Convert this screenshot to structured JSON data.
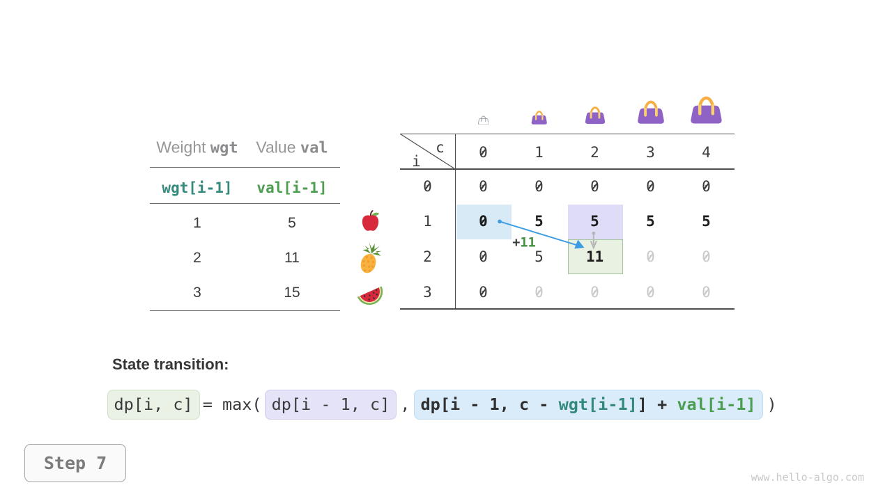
{
  "items_table": {
    "header": {
      "col1_prefix": "Weight",
      "col1_code": "wgt",
      "col2_prefix": "Value",
      "col2_code": "val"
    },
    "index_row": {
      "wgt": "wgt[i-1]",
      "val": "val[i-1]"
    },
    "rows": [
      {
        "wgt": "1",
        "val": "5",
        "item": "apple"
      },
      {
        "wgt": "2",
        "val": "11",
        "item": "pineapple"
      },
      {
        "wgt": "3",
        "val": "15",
        "item": "watermelon"
      }
    ]
  },
  "dp_table": {
    "corner": {
      "top_label": "c",
      "side_label": "i"
    },
    "col_headers": [
      "0",
      "1",
      "2",
      "3",
      "4"
    ],
    "row_headers": [
      "0",
      "1",
      "2",
      "3"
    ],
    "rows": [
      [
        {
          "v": "0"
        },
        {
          "v": "0"
        },
        {
          "v": "0"
        },
        {
          "v": "0"
        },
        {
          "v": "0"
        }
      ],
      [
        {
          "v": "0",
          "w": "bold",
          "hl": "blue"
        },
        {
          "v": "5",
          "w": "bold"
        },
        {
          "v": "5",
          "w": "bold",
          "hl": "lavender"
        },
        {
          "v": "5",
          "w": "bold"
        },
        {
          "v": "5",
          "w": "bold"
        }
      ],
      [
        {
          "v": "0"
        },
        {
          "v": "5"
        },
        {
          "v": "11",
          "w": "bold",
          "hl": "green"
        },
        {
          "v": "0",
          "w": "ghost"
        },
        {
          "v": "0",
          "w": "ghost"
        }
      ],
      [
        {
          "v": "0"
        },
        {
          "v": "0",
          "w": "ghost"
        },
        {
          "v": "0",
          "w": "ghost"
        },
        {
          "v": "0",
          "w": "ghost"
        },
        {
          "v": "0",
          "w": "ghost"
        }
      ]
    ],
    "bags": [
      {
        "name": "bag-capacity-0",
        "variant": "empty"
      },
      {
        "name": "bag-capacity-1",
        "variant": "purple"
      },
      {
        "name": "bag-capacity-2",
        "variant": "purple"
      },
      {
        "name": "bag-capacity-3",
        "variant": "purple"
      },
      {
        "name": "bag-capacity-4",
        "variant": "purple"
      }
    ],
    "annotation": {
      "plus_prefix": "+",
      "plus_value": "11"
    }
  },
  "transition": {
    "title": "State transition:",
    "lhs": "dp[i, c]",
    "eq": "= max(",
    "opt1": "dp[i - 1, c]",
    "comma": ",",
    "opt2_parts": [
      {
        "t": "dp[i - 1, c - ",
        "c": "dark"
      },
      {
        "t": "wgt[i-1]",
        "c": "teal"
      },
      {
        "t": "] + ",
        "c": "dark"
      },
      {
        "t": "val[i-1]",
        "c": "green"
      }
    ],
    "close": ")"
  },
  "step": {
    "label": "Step 7"
  },
  "watermark": "www.hello-algo.com",
  "colors": {
    "accent_blue": "#3b9ce3",
    "hl_blue": "#d9eaf7",
    "hl_lavender": "#dedcf6",
    "hl_green_fill": "#e9f1e3",
    "hl_green_border": "#a2c49a",
    "teal": "#33897c",
    "green": "#4b9d4f",
    "plus_green": "#43913f",
    "ghost": "#c9c9cb",
    "bag_purple": "#8f63c6",
    "bag_handle": "#f5af44"
  }
}
